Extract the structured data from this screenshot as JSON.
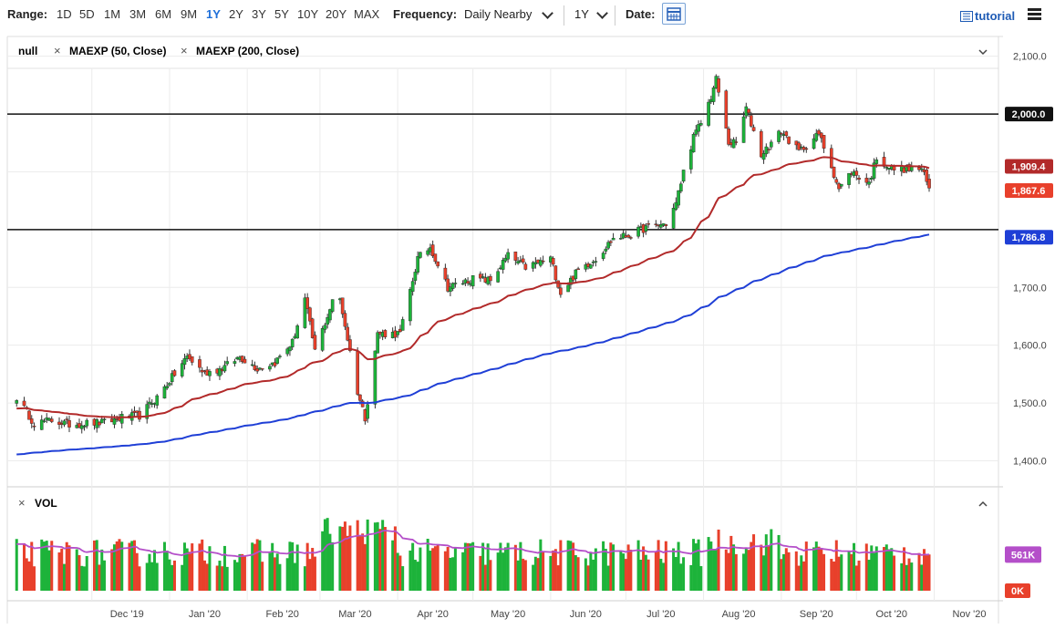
{
  "toolbar": {
    "range_label": "Range:",
    "ranges": [
      "1D",
      "5D",
      "1M",
      "3M",
      "6M",
      "9M",
      "1Y",
      "2Y",
      "3Y",
      "5Y",
      "10Y",
      "20Y",
      "MAX"
    ],
    "active_range": "1Y",
    "frequency_label": "Frequency:",
    "frequency_value": "Daily Nearby",
    "period_value": "1Y",
    "date_label": "Date:",
    "tutorial_label": "tutorial"
  },
  "legend": {
    "symbol": "null",
    "study1": "MAEXP (50, Close)",
    "study2": "MAEXP (200, Close)"
  },
  "volume_panel": {
    "label": "VOL"
  },
  "colors": {
    "up": "#1db33a",
    "down": "#e8402b",
    "ma50": "#b22a2a",
    "ma200": "#1f3fd6",
    "vol_ma": "#b44fc9",
    "active": "#1e6fd9"
  },
  "chart_data": {
    "type": "candlestick",
    "x_tick_labels": [
      "Dec '19",
      "Jan '20",
      "Feb '20",
      "Mar '20",
      "Apr '20",
      "May '20",
      "Jun '20",
      "Jul '20",
      "Aug '20",
      "Sep '20",
      "Oct '20",
      "Nov '20"
    ],
    "y_tick_labels": [
      "1,400.0",
      "1,500.0",
      "1,600.0",
      "1,700.0",
      "2,100.0"
    ],
    "ylim": [
      1355,
      2120
    ],
    "price_keypoints": [
      [
        "2019-11-01",
        1510
      ],
      [
        "2019-11-08",
        1465
      ],
      [
        "2019-11-15",
        1470
      ],
      [
        "2019-11-22",
        1463
      ],
      [
        "2019-11-29",
        1465
      ],
      [
        "2019-12-06",
        1466
      ],
      [
        "2019-12-13",
        1475
      ],
      [
        "2019-12-20",
        1478
      ],
      [
        "2019-12-27",
        1510
      ],
      [
        "2020-01-03",
        1550
      ],
      [
        "2020-01-08",
        1580
      ],
      [
        "2020-01-15",
        1552
      ],
      [
        "2020-01-22",
        1560
      ],
      [
        "2020-01-29",
        1580
      ],
      [
        "2020-02-05",
        1560
      ],
      [
        "2020-02-12",
        1570
      ],
      [
        "2020-02-19",
        1605
      ],
      [
        "2020-02-24",
        1680
      ],
      [
        "2020-02-28",
        1590
      ],
      [
        "2020-03-06",
        1675
      ],
      [
        "2020-03-09",
        1680
      ],
      [
        "2020-03-16",
        1520
      ],
      [
        "2020-03-19",
        1475
      ],
      [
        "2020-03-24",
        1620
      ],
      [
        "2020-04-02",
        1620
      ],
      [
        "2020-04-09",
        1750
      ],
      [
        "2020-04-14",
        1770
      ],
      [
        "2020-04-21",
        1700
      ],
      [
        "2020-05-01",
        1715
      ],
      [
        "2020-05-08",
        1712
      ],
      [
        "2020-05-15",
        1755
      ],
      [
        "2020-05-22",
        1735
      ],
      [
        "2020-06-01",
        1750
      ],
      [
        "2020-06-05",
        1690
      ],
      [
        "2020-06-12",
        1730
      ],
      [
        "2020-06-19",
        1750
      ],
      [
        "2020-06-26",
        1785
      ],
      [
        "2020-07-02",
        1790
      ],
      [
        "2020-07-10",
        1805
      ],
      [
        "2020-07-17",
        1810
      ],
      [
        "2020-07-21",
        1845
      ],
      [
        "2020-07-24",
        1900
      ],
      [
        "2020-07-28",
        1960
      ],
      [
        "2020-07-31",
        1985
      ],
      [
        "2020-08-04",
        2030
      ],
      [
        "2020-08-06",
        2060
      ],
      [
        "2020-08-11",
        1950
      ],
      [
        "2020-08-14",
        1950
      ],
      [
        "2020-08-18",
        2010
      ],
      [
        "2020-08-24",
        1930
      ],
      [
        "2020-09-01",
        1970
      ],
      [
        "2020-09-08",
        1935
      ],
      [
        "2020-09-16",
        1965
      ],
      [
        "2020-09-21",
        1910
      ],
      [
        "2020-09-24",
        1870
      ],
      [
        "2020-09-29",
        1900
      ],
      [
        "2020-10-06",
        1880
      ],
      [
        "2020-10-09",
        1925
      ],
      [
        "2020-10-15",
        1905
      ],
      [
        "2020-10-22",
        1905
      ],
      [
        "2020-10-27",
        1905
      ],
      [
        "2020-10-30",
        1870
      ]
    ],
    "price_labels": [
      {
        "name": "level-2000",
        "value": 2000,
        "text": "2,000.0"
      },
      {
        "name": "ma50",
        "value": 1909.4,
        "text": "1,909.4"
      },
      {
        "name": "last",
        "value": 1867.6,
        "text": "1,867.6"
      },
      {
        "name": "ma200",
        "value": 1786.8,
        "text": "1,786.8"
      }
    ],
    "horizontal_lines": [
      2000,
      1800
    ],
    "volume_labels": {
      "vol_ma": "561K",
      "zero": "0K"
    }
  }
}
